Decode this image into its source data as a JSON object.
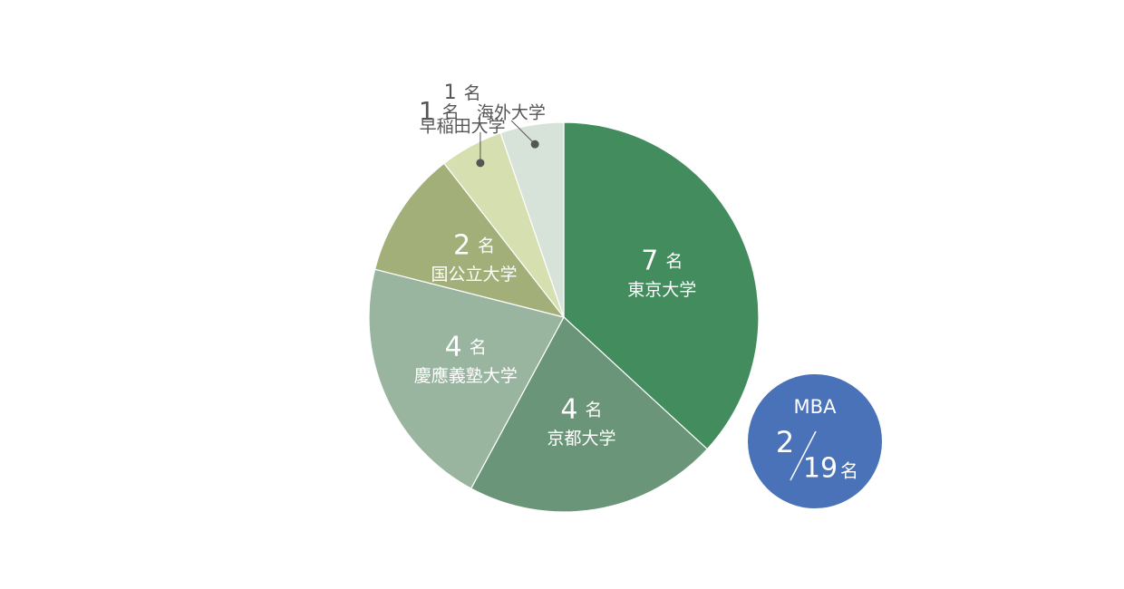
{
  "chart_data": {
    "type": "pie",
    "categories": [
      "東京大学",
      "京都大学",
      "慶應義塾大学",
      "国公立大学",
      "海外大学",
      "早稲田大学"
    ],
    "values": [
      7,
      4,
      4,
      2,
      1,
      1
    ],
    "unit": "名",
    "colors": [
      "#438c5e",
      "#6a9578",
      "#99b5a0",
      "#a3af78",
      "#d6dfb0",
      "#d7e2d8"
    ],
    "annotation": {
      "label": "MBA",
      "value": 2,
      "total": 19,
      "unit": "名",
      "color": "#4a72b8"
    }
  }
}
